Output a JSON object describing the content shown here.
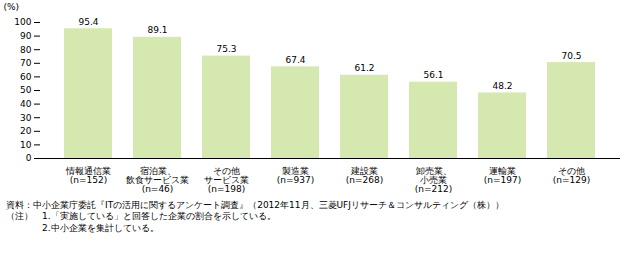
{
  "chart_data": {
    "type": "bar",
    "categories": [
      "情報通信業\n(n=152)",
      "宿泊業、\n飲食サービス業\n(n=46)",
      "その他\nサービス業\n(n=198)",
      "製造業\n(n=937)",
      "建設業\n(n=268)",
      "卸売業、\n小売業\n(n=212)",
      "運輸業\n(n=197)",
      "その他\n(n=129)"
    ],
    "values": [
      95.4,
      89.1,
      75.3,
      67.4,
      61.2,
      56.1,
      48.2,
      70.5
    ],
    "color": "#d4e8b0",
    "ylim": [
      0,
      100
    ],
    "yticks": [
      0,
      10,
      20,
      30,
      40,
      50,
      60,
      70,
      80,
      90,
      100
    ],
    "ylabel": "(%)",
    "data_labels": true,
    "grid": false,
    "annotations": [
      "資料：中小企業庁委託『ITの活用に関するアンケート調査』（2012年11月、三菱UFJリサーチ＆コンサルティング（株））",
      "（注）　1.「実施している」と回答した企業の割合を示している。",
      "　　　　2.中小企業を集計している。"
    ]
  }
}
